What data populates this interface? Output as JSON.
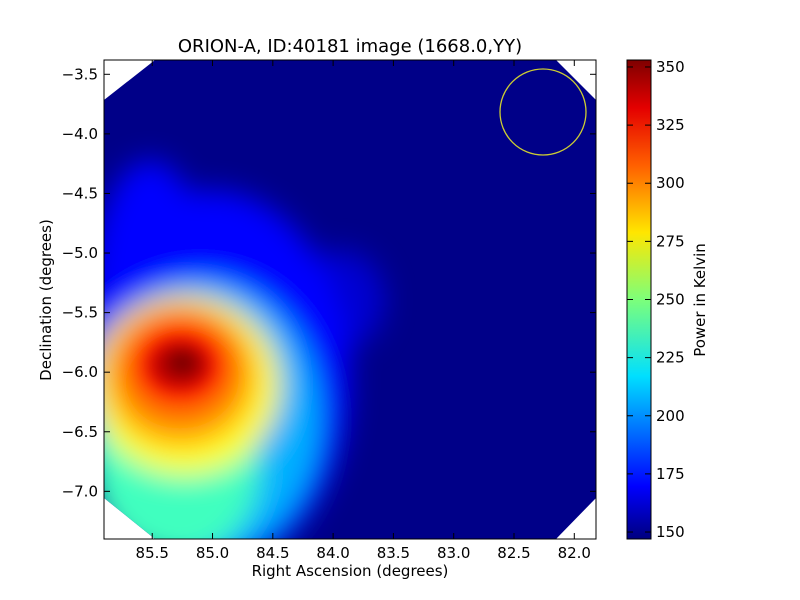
{
  "chart_data": {
    "type": "heatmap",
    "title": "ORION-A, ID:40181 image (1668.0,YY)",
    "xlabel": "Right Ascension (degrees)",
    "ylabel": "Declination (degrees)",
    "xlim": [
      85.9,
      81.82
    ],
    "ylim": [
      -7.4,
      -3.38
    ],
    "xticks": [
      85.5,
      85.0,
      84.5,
      84.0,
      83.5,
      83.0,
      82.5,
      82.0
    ],
    "xtick_labels": [
      "85.5",
      "85.0",
      "84.5",
      "84.0",
      "83.5",
      "83.0",
      "82.5",
      "82.0"
    ],
    "yticks": [
      -3.5,
      -4.0,
      -4.5,
      -5.0,
      -5.5,
      -6.0,
      -6.5,
      -7.0
    ],
    "ytick_labels": [
      "−3.5",
      "−4.0",
      "−4.5",
      "−5.0",
      "−5.5",
      "−6.0",
      "−6.5",
      "−7.0"
    ],
    "colorbar": {
      "label": "Power in Kelvin",
      "range": [
        147,
        353
      ],
      "ticks": [
        150,
        175,
        200,
        225,
        250,
        275,
        300,
        325,
        350
      ],
      "tick_labels": [
        "150",
        "175",
        "200",
        "225",
        "250",
        "275",
        "300",
        "325",
        "350"
      ],
      "colormap": "jet"
    },
    "background_level": 150,
    "sources": [
      {
        "ra": 85.25,
        "dec": -5.95,
        "peak_kelvin": 352,
        "description": "bright emission peak"
      },
      {
        "ra": 83.85,
        "dec": -5.4,
        "peak_kelvin": 160,
        "description": "faint secondary blob"
      }
    ],
    "beam_circle": {
      "ra": 82.25,
      "dec": -3.83,
      "radius_deg": 0.36,
      "color": "#cccc33"
    }
  }
}
